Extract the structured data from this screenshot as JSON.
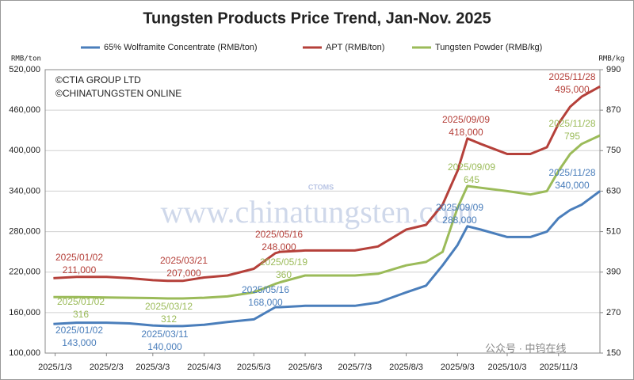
{
  "chart_data": {
    "type": "line",
    "title": "Tungsten Products Price Trend, Jan-Nov. 2025",
    "y_label": "RMB/ton",
    "y2_label": "RMB/kg",
    "copyright": [
      "©CTIA GROUP LTD",
      "©CHINATUNGSTEN ONLINE"
    ],
    "watermark": "www.chinatungsten.com",
    "logo_text": "CTOMS",
    "wechat": "公众号 · 中钨在线",
    "x": [
      "2025/1/2",
      "2025/1/16",
      "2025/2/3",
      "2025/2/17",
      "2025/3/3",
      "2025/3/12",
      "2025/3/21",
      "2025/4/3",
      "2025/4/17",
      "2025/5/3",
      "2025/5/16",
      "2025/5/19",
      "2025/6/3",
      "2025/6/17",
      "2025/7/3",
      "2025/7/17",
      "2025/8/3",
      "2025/8/15",
      "2025/8/25",
      "2025/9/3",
      "2025/9/9",
      "2025/9/17",
      "2025/10/3",
      "2025/10/17",
      "2025/10/27",
      "2025/11/3",
      "2025/11/10",
      "2025/11/17",
      "2025/11/28"
    ],
    "xlim": [
      "2024/12/28",
      "2025/11/28"
    ],
    "xticks": [
      "2025/1/3",
      "2025/2/3",
      "2025/3/3",
      "2025/4/3",
      "2025/5/3",
      "2025/6/3",
      "2025/7/3",
      "2025/8/3",
      "2025/9/3",
      "2025/10/3",
      "2025/11/3"
    ],
    "ylim": [
      100000,
      520000
    ],
    "yticks": [
      {
        "value": 100000,
        "label": "100,000"
      },
      {
        "value": 160000,
        "label": "160,000"
      },
      {
        "value": 220000,
        "label": "220,000"
      },
      {
        "value": 280000,
        "label": "280,000"
      },
      {
        "value": 340000,
        "label": "340,000"
      },
      {
        "value": 400000,
        "label": "400,000"
      },
      {
        "value": 460000,
        "label": "460,000"
      },
      {
        "value": 520000,
        "label": "520,000"
      }
    ],
    "y2lim": [
      150,
      990
    ],
    "y2ticks": [
      150,
      270,
      390,
      510,
      630,
      750,
      870,
      990
    ],
    "grid": true,
    "legend": "top",
    "series": [
      {
        "name": "65% Wolframite Concentrate (RMB/ton)",
        "color": "#4a7ebb",
        "values": [
          143000,
          145000,
          145000,
          144000,
          141000,
          140000,
          140000,
          142000,
          146000,
          150000,
          168000,
          168000,
          170000,
          170000,
          170000,
          175000,
          190000,
          200000,
          230000,
          260000,
          288000,
          283000,
          272000,
          272000,
          280000,
          300000,
          312000,
          320000,
          340000
        ],
        "annotations": [
          {
            "date": "2025/01/02",
            "value": "143,000"
          },
          {
            "date": "2025/03/11",
            "value": "140,000"
          },
          {
            "date": "2025/05/16",
            "value": "168,000"
          },
          {
            "date": "2025/09/09",
            "value": "288,000"
          },
          {
            "date": "2025/11/28",
            "value": "340,000"
          }
        ]
      },
      {
        "name": "APT (RMB/ton)",
        "color": "#b5403a",
        "values": [
          211000,
          213000,
          213000,
          211000,
          208000,
          207000,
          207000,
          212000,
          215000,
          225000,
          248000,
          250000,
          252000,
          252000,
          252000,
          258000,
          283000,
          290000,
          320000,
          370000,
          418000,
          410000,
          395000,
          395000,
          405000,
          440000,
          465000,
          480000,
          495000
        ],
        "annotations": [
          {
            "date": "2025/01/02",
            "value": "211,000"
          },
          {
            "date": "2025/03/21",
            "value": "207,000"
          },
          {
            "date": "2025/05/16",
            "value": "248,000"
          },
          {
            "date": "2025/09/09",
            "value": "418,000"
          },
          {
            "date": "2025/11/28",
            "value": "495,000"
          }
        ]
      },
      {
        "name": "Tungsten Powder (RMB/kg)",
        "color": "#9bbb59",
        "axis": "y2",
        "values": [
          316,
          316,
          315,
          314,
          313,
          312,
          312,
          314,
          318,
          330,
          355,
          360,
          380,
          380,
          380,
          385,
          410,
          420,
          450,
          580,
          645,
          640,
          630,
          620,
          630,
          690,
          740,
          770,
          795
        ],
        "annotations": [
          {
            "date": "2025/01/02",
            "value": "316"
          },
          {
            "date": "2025/03/12",
            "value": "312"
          },
          {
            "date": "2025/05/19",
            "value": "360"
          },
          {
            "date": "2025/09/09",
            "value": "645"
          },
          {
            "date": "2025/11/28",
            "value": "795"
          }
        ]
      }
    ]
  }
}
